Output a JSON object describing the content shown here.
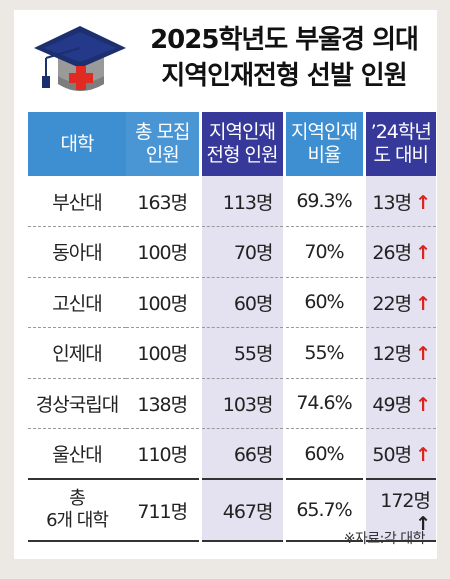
{
  "title_line1": "2025학년도 부울경 의대",
  "title_line2": "지역인재전형 선발 인원",
  "colors": {
    "header_blue": "#3d8fd1",
    "header_navy": "#37399a",
    "highlight_bg": "#e4e1f0",
    "up_arrow": "#d9251d"
  },
  "icons": {
    "cap": "graduation-cap-with-cross",
    "arrow": "up-arrow"
  },
  "chart_data": {
    "type": "table",
    "title": "2025학년도 부울경 의대 지역인재전형 선발 인원",
    "columns": [
      {
        "line1": "대학",
        "line2": ""
      },
      {
        "line1": "총 모집",
        "line2": "인원"
      },
      {
        "line1": "지역인재",
        "line2": "전형 인원"
      },
      {
        "line1": "지역인재",
        "line2": "비율"
      },
      {
        "line1": "’24학년",
        "line2": "도 대비"
      }
    ],
    "rows": [
      {
        "univ": "부산대",
        "total": "163명",
        "regional": "113명",
        "ratio": "69.3%",
        "change": "13명",
        "arrow": "↑"
      },
      {
        "univ": "동아대",
        "total": "100명",
        "regional": "70명",
        "ratio": "70%",
        "change": "26명",
        "arrow": "↑"
      },
      {
        "univ": "고신대",
        "total": "100명",
        "regional": "60명",
        "ratio": "60%",
        "change": "22명",
        "arrow": "↑"
      },
      {
        "univ": "인제대",
        "total": "100명",
        "regional": "55명",
        "ratio": "55%",
        "change": "12명",
        "arrow": "↑"
      },
      {
        "univ": "경상국립대",
        "total": "138명",
        "regional": "103명",
        "ratio": "74.6%",
        "change": "49명",
        "arrow": "↑"
      },
      {
        "univ": "울산대",
        "total": "110명",
        "regional": "66명",
        "ratio": "60%",
        "change": "50명",
        "arrow": "↑"
      }
    ],
    "total_row": {
      "univ_line1": "총",
      "univ_line2": "6개 대학",
      "total": "711명",
      "regional": "467명",
      "ratio": "65.7%",
      "change": "172명",
      "arrow": "↑"
    }
  },
  "source": "※자료:각 대학"
}
